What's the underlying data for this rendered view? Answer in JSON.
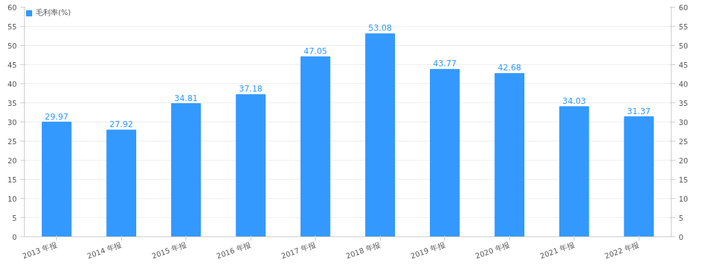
{
  "chart_data": {
    "type": "bar",
    "categories": [
      "2013 年报",
      "2014 年报",
      "2015 年报",
      "2016 年报",
      "2017 年报",
      "2018 年报",
      "2019 年报",
      "2020 年报",
      "2021 年报",
      "2022 年报"
    ],
    "series": [
      {
        "name": "毛利率(%)",
        "color": "#3399ff",
        "values": [
          29.97,
          27.92,
          34.81,
          37.18,
          47.05,
          53.08,
          43.77,
          42.68,
          34.03,
          31.37
        ]
      }
    ],
    "ylim": [
      0,
      60
    ],
    "yticks": [
      0,
      5,
      10,
      15,
      20,
      25,
      30,
      35,
      40,
      45,
      50,
      55,
      60
    ],
    "y2lim": [
      0,
      60
    ],
    "y2ticks": [
      0,
      5,
      10,
      15,
      20,
      25,
      30,
      35,
      40,
      45,
      50,
      55,
      60
    ],
    "data_labels": true,
    "grid": "y",
    "legend": "top left"
  }
}
